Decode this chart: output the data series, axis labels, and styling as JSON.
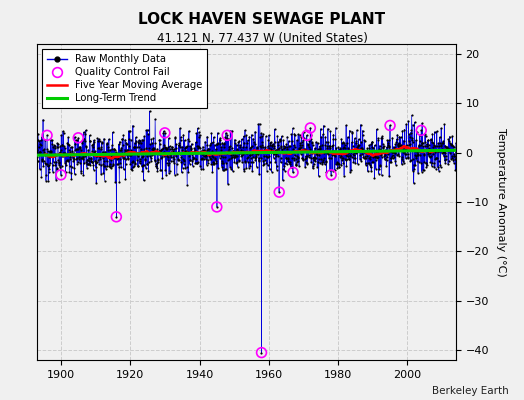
{
  "title": "LOCK HAVEN SEWAGE PLANT",
  "subtitle": "41.121 N, 77.437 W (United States)",
  "credit": "Berkeley Earth",
  "ylabel": "Temperature Anomaly (°C)",
  "xlim": [
    1893,
    2014
  ],
  "ylim": [
    -42,
    22
  ],
  "yticks": [
    -40,
    -30,
    -20,
    -10,
    0,
    10,
    20
  ],
  "xticks": [
    1900,
    1920,
    1940,
    1960,
    1980,
    2000
  ],
  "year_start": 1893,
  "year_end": 2014,
  "background_color": "#f0f0f0",
  "plot_bg_color": "#f0f0f0",
  "raw_color": "#0000dd",
  "raw_marker_color": "#000000",
  "qc_fail_color": "#ff00ff",
  "moving_avg_color": "#ff0000",
  "trend_color": "#00cc00",
  "seed": 12345,
  "n_months": 1452,
  "qc_fail_years": [
    1896,
    1900,
    1905,
    1916,
    1930,
    1945,
    1948,
    1957.9,
    1963,
    1967,
    1971,
    1972,
    1978,
    1995,
    2004
  ],
  "qc_fail_values": [
    3.5,
    -4.5,
    3.0,
    -13,
    4.0,
    -11,
    3.5,
    -40.5,
    -8,
    -4,
    3.5,
    5.0,
    -4.5,
    5.5,
    4.5
  ],
  "spike_year": 1957.9,
  "spike_value": -40.5
}
